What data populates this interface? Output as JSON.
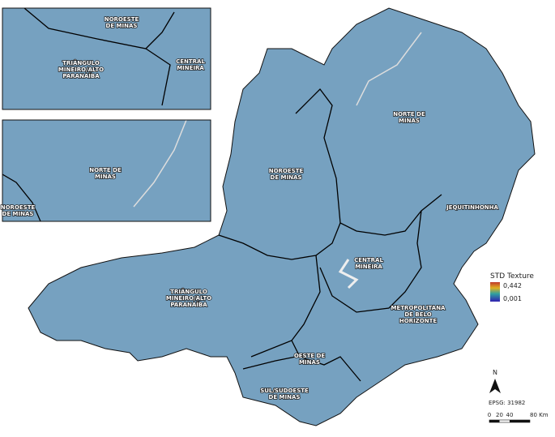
{
  "insets": [
    {
      "labels": [
        {
          "lines": [
            "NOROESTE",
            "DE MINAS"
          ]
        },
        {
          "lines": [
            "TRIÂNGULO",
            "MINEIRO/ALTO",
            "PARANAÍBA"
          ]
        },
        {
          "lines": [
            "CENTRAL",
            "MINEIRA"
          ]
        }
      ]
    },
    {
      "labels": [
        {
          "lines": [
            "NORTE DE",
            "MINAS"
          ]
        },
        {
          "lines": [
            "NOROESTE",
            "DE MINAS"
          ]
        }
      ]
    }
  ],
  "regions": [
    {
      "lines": [
        "NORTE DE",
        "MINAS"
      ]
    },
    {
      "lines": [
        "NOROESTE",
        "DE MINAS"
      ]
    },
    {
      "lines": [
        "JEQUITINHONHA"
      ]
    },
    {
      "lines": [
        "CENTRAL",
        "MINEIRA"
      ]
    },
    {
      "lines": [
        "TRIÂNGULO",
        "MINEIRO/ALTO",
        "PARANAÍBA"
      ]
    },
    {
      "lines": [
        "METROPOLITANA",
        "DE BELO",
        "HORIZONTE"
      ]
    },
    {
      "lines": [
        "OESTE DE",
        "MINAS"
      ]
    },
    {
      "lines": [
        "SUL/SUDOESTE",
        "DE MINAS"
      ]
    }
  ],
  "legend": {
    "title": "STD Texture",
    "max": "0,442",
    "min": "0,001"
  },
  "north": "N",
  "crs": "EPSG: 31982",
  "scale_bar": [
    "0",
    "20",
    "40",
    "80 Km"
  ]
}
